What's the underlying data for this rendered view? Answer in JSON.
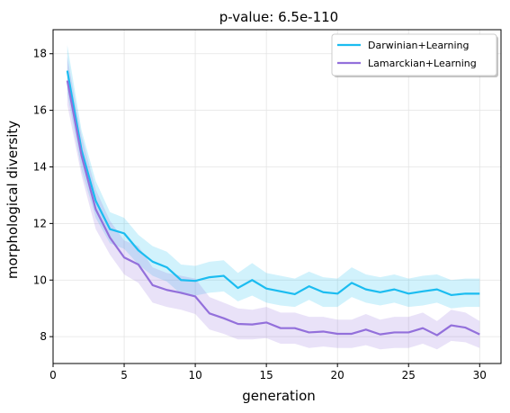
{
  "chart_data": {
    "type": "line",
    "title": "p-value: 6.5e-110",
    "xlabel": "generation",
    "ylabel": "morphological diversity",
    "xlim": [
      0,
      31.5
    ],
    "ylim": [
      7.05,
      18.85
    ],
    "xticks": [
      0,
      5,
      10,
      15,
      20,
      25,
      30
    ],
    "yticks": [
      8,
      10,
      12,
      14,
      16,
      18
    ],
    "grid": true,
    "legend_position": "top-right",
    "x": [
      1,
      2,
      3,
      4,
      5,
      6,
      7,
      8,
      9,
      10,
      11,
      12,
      13,
      14,
      15,
      16,
      17,
      18,
      19,
      20,
      21,
      22,
      23,
      24,
      25,
      26,
      27,
      28,
      29,
      30
    ],
    "series": [
      {
        "name": "Darwinian+Learning",
        "color": "#1bbcf0",
        "band_color": "#1bbcf0",
        "values": [
          17.4,
          14.6,
          12.8,
          11.8,
          11.65,
          11.05,
          10.65,
          10.45,
          10.0,
          9.97,
          10.1,
          10.15,
          9.72,
          10.0,
          9.7,
          9.6,
          9.5,
          9.78,
          9.57,
          9.52,
          9.9,
          9.67,
          9.57,
          9.67,
          9.52,
          9.6,
          9.67,
          9.47,
          9.52,
          9.52
        ],
        "lower": [
          16.6,
          13.9,
          12.2,
          11.3,
          11.1,
          10.55,
          10.15,
          9.95,
          9.5,
          9.45,
          9.55,
          9.6,
          9.25,
          9.45,
          9.2,
          9.1,
          9.05,
          9.3,
          9.05,
          9.05,
          9.4,
          9.2,
          9.1,
          9.2,
          9.05,
          9.1,
          9.2,
          9.0,
          9.05,
          9.05
        ],
        "upper": [
          18.3,
          15.3,
          13.5,
          12.4,
          12.2,
          11.6,
          11.2,
          11.0,
          10.55,
          10.5,
          10.65,
          10.7,
          10.25,
          10.6,
          10.25,
          10.15,
          10.05,
          10.3,
          10.1,
          10.05,
          10.45,
          10.2,
          10.1,
          10.2,
          10.05,
          10.15,
          10.2,
          10.0,
          10.05,
          10.05
        ]
      },
      {
        "name": "Lamarckian+Learning",
        "color": "#9370db",
        "band_color": "#9370db",
        "values": [
          17.05,
          14.4,
          12.5,
          11.5,
          10.8,
          10.55,
          9.82,
          9.65,
          9.55,
          9.42,
          8.82,
          8.65,
          8.45,
          8.43,
          8.5,
          8.3,
          8.3,
          8.15,
          8.18,
          8.1,
          8.1,
          8.25,
          8.08,
          8.15,
          8.15,
          8.3,
          8.05,
          8.4,
          8.32,
          8.08
        ],
        "lower": [
          16.2,
          13.7,
          11.8,
          10.9,
          10.2,
          9.9,
          9.2,
          9.05,
          8.95,
          8.8,
          8.25,
          8.1,
          7.9,
          7.9,
          7.95,
          7.75,
          7.75,
          7.6,
          7.65,
          7.6,
          7.6,
          7.7,
          7.55,
          7.6,
          7.6,
          7.75,
          7.55,
          7.85,
          7.8,
          7.6
        ],
        "upper": [
          17.9,
          15.1,
          13.2,
          12.1,
          11.4,
          11.2,
          10.45,
          10.25,
          10.15,
          10.05,
          9.4,
          9.2,
          9.0,
          8.95,
          9.05,
          8.85,
          8.85,
          8.7,
          8.7,
          8.6,
          8.6,
          8.8,
          8.6,
          8.7,
          8.7,
          8.85,
          8.55,
          8.95,
          8.85,
          8.55
        ]
      }
    ]
  }
}
